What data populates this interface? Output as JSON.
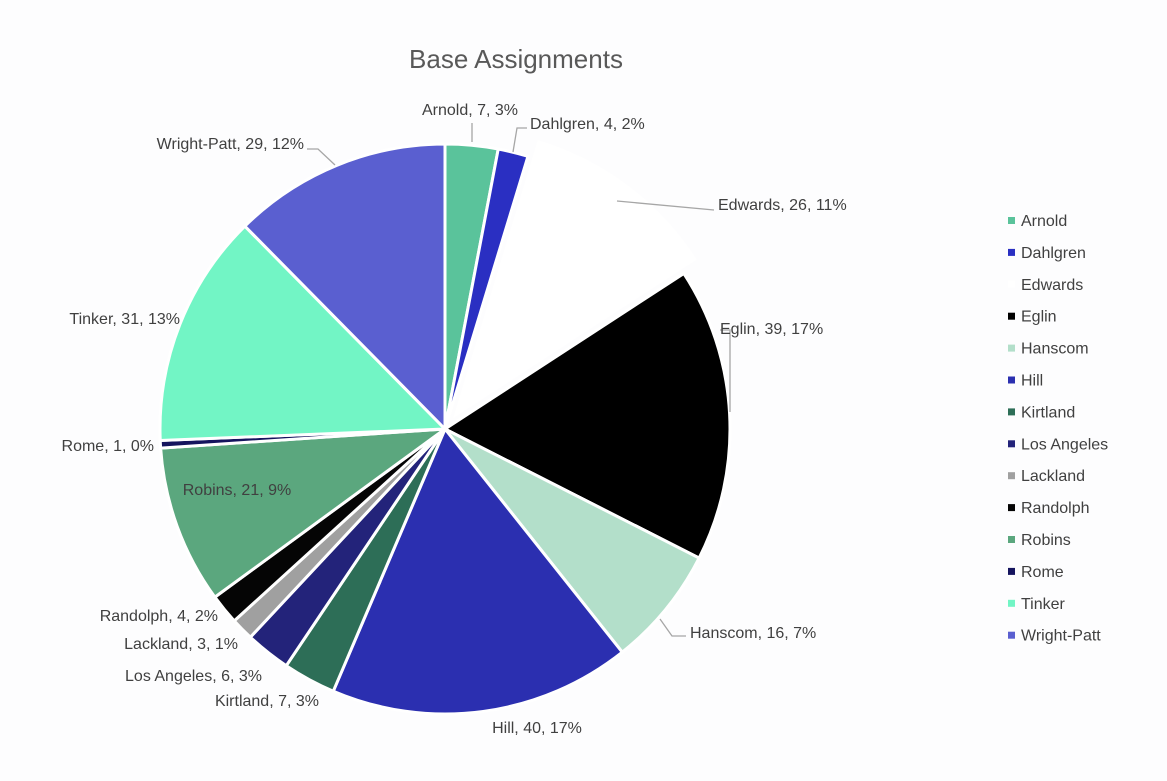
{
  "chart_data": {
    "type": "pie",
    "title": "Base Assignments",
    "legend_position": "right",
    "slices": [
      {
        "label": "Arnold",
        "value": 7,
        "percent_label": "3%",
        "color": "#5ac39b"
      },
      {
        "label": "Dahlgren",
        "value": 4,
        "percent_label": "2%",
        "color": "#2a2fc2"
      },
      {
        "label": "Edwards",
        "value": 26,
        "percent_label": "11%",
        "color": "#ffffff"
      },
      {
        "label": "Eglin",
        "value": 39,
        "percent_label": "17%",
        "color": "#000000"
      },
      {
        "label": "Hanscom",
        "value": 16,
        "percent_label": "7%",
        "color": "#b3dfca"
      },
      {
        "label": "Hill",
        "value": 40,
        "percent_label": "17%",
        "color": "#2b2fb0"
      },
      {
        "label": "Kirtland",
        "value": 7,
        "percent_label": "3%",
        "color": "#2d6e57"
      },
      {
        "label": "Los Angeles",
        "value": 6,
        "percent_label": "3%",
        "color": "#23237a"
      },
      {
        "label": "Lackland",
        "value": 3,
        "percent_label": "1%",
        "color": "#a0a0a0"
      },
      {
        "label": "Randolph",
        "value": 4,
        "percent_label": "2%",
        "color": "#050505"
      },
      {
        "label": "Robins",
        "value": 21,
        "percent_label": "9%",
        "color": "#5ba77e"
      },
      {
        "label": "Rome",
        "value": 1,
        "percent_label": "0%",
        "color": "#15145e"
      },
      {
        "label": "Tinker",
        "value": 31,
        "percent_label": "13%",
        "color": "#72f5c5"
      },
      {
        "label": "Wright-Patt",
        "value": 29,
        "percent_label": "12%",
        "color": "#5a5fd0"
      }
    ]
  }
}
